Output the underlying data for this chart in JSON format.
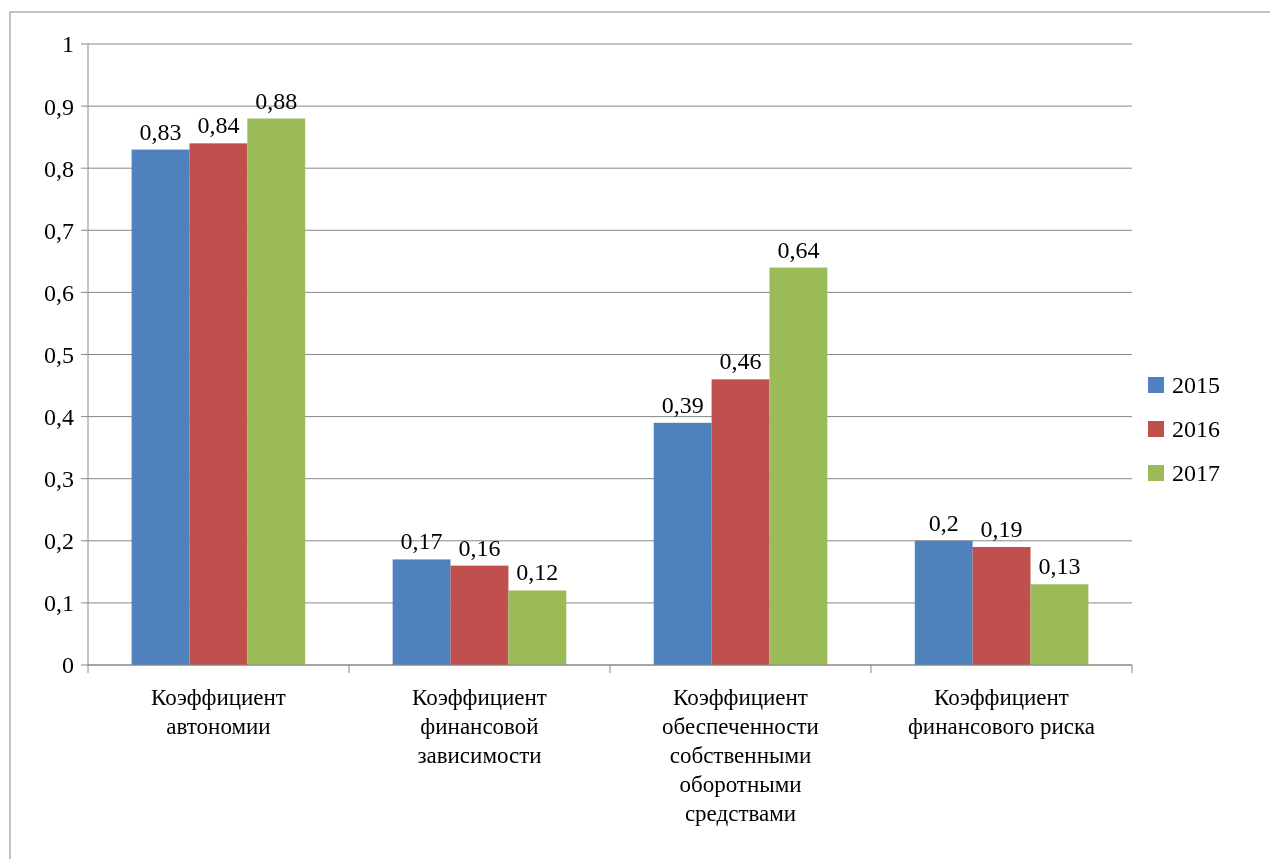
{
  "chart_data": {
    "type": "bar",
    "categories": [
      "Коэффициент автономии",
      "Коэффициент финансовой зависимости",
      "Коэффициент обеспеченности собственными оборотными средствами",
      "Коэффициент финансового риска"
    ],
    "series": [
      {
        "name": "2015",
        "color": "#4f81bd",
        "values": [
          0.83,
          0.17,
          0.39,
          0.2
        ],
        "value_labels": [
          "0,83",
          "0,17",
          "0,39",
          "0,2"
        ]
      },
      {
        "name": "2016",
        "color": "#c0504d",
        "values": [
          0.84,
          0.16,
          0.46,
          0.19
        ],
        "value_labels": [
          "0,84",
          "0,16",
          "0,46",
          "0,19"
        ]
      },
      {
        "name": "2017",
        "color": "#9bbb59",
        "values": [
          0.88,
          0.12,
          0.64,
          0.13
        ],
        "value_labels": [
          "0,88",
          "0,12",
          "0,64",
          "0,13"
        ]
      }
    ],
    "ylim": [
      0,
      1
    ],
    "yticks": [
      0,
      {
        "value": 0.1,
        "label": "0,1"
      },
      {
        "value": 0.2,
        "label": "0,2"
      },
      {
        "value": 0.3,
        "label": "0,3"
      },
      {
        "value": 0.4,
        "label": "0,4"
      },
      {
        "value": 0.5,
        "label": "0,5"
      },
      {
        "value": 0.6,
        "label": "0,6"
      },
      {
        "value": 0.7,
        "label": "0,7"
      },
      {
        "value": 0.8,
        "label": "0,8"
      },
      {
        "value": 0.9,
        "label": "0,9"
      },
      1
    ],
    "grid": "y",
    "legend": "right"
  }
}
